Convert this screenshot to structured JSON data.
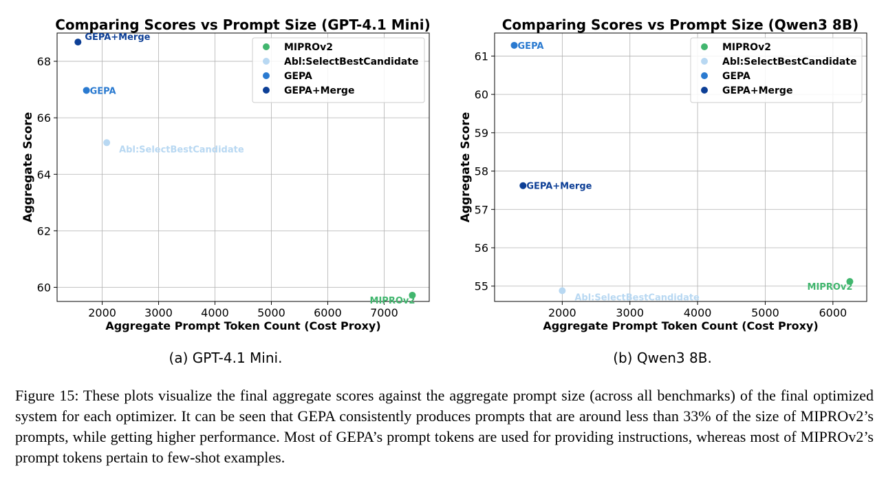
{
  "chart_data": [
    {
      "type": "scatter",
      "title": "Comparing Scores vs Prompt Size (GPT-4.1 Mini)",
      "xlabel": "Aggregate Prompt Token Count (Cost Proxy)",
      "ylabel": "Aggregate Score",
      "xlim": [
        1200,
        7800
      ],
      "ylim": [
        59.5,
        69.0
      ],
      "xticks": [
        2000,
        3000,
        4000,
        5000,
        6000,
        7000
      ],
      "yticks": [
        60,
        62,
        64,
        66,
        68
      ],
      "grid": true,
      "legend_position": "top-right",
      "legend": [
        "MIPROv2",
        "Abl:SelectBestCandidate",
        "GEPA",
        "GEPA+Merge"
      ],
      "series": [
        {
          "name": "MIPROv2",
          "label": "MIPROv2",
          "x": 7500,
          "y": 59.72,
          "color": "#41b66e",
          "label_side": "left-below"
        },
        {
          "name": "Abl:SelectBestCandidate",
          "label": "Abl:SelectBestCandidate",
          "x": 2080,
          "y": 65.12,
          "color": "#b8d8f2",
          "label_side": "right-below"
        },
        {
          "name": "GEPA",
          "label": "GEPA",
          "x": 1720,
          "y": 66.97,
          "color": "#2a7ad0",
          "label_side": "right"
        },
        {
          "name": "GEPA+Merge",
          "label": "GEPA+Merge",
          "x": 1570,
          "y": 68.68,
          "color": "#0d3f96",
          "label_side": "right-above"
        }
      ],
      "subcaption": "(a) GPT-4.1 Mini."
    },
    {
      "type": "scatter",
      "title": "Comparing Scores vs Prompt Size (Qwen3 8B)",
      "xlabel": "Aggregate Prompt Token Count (Cost Proxy)",
      "ylabel": "Aggregate Score",
      "xlim": [
        1000,
        6500
      ],
      "ylim": [
        54.6,
        61.6
      ],
      "xticks": [
        2000,
        3000,
        4000,
        5000,
        6000
      ],
      "yticks": [
        55,
        56,
        57,
        58,
        59,
        60,
        61
      ],
      "grid": true,
      "legend_position": "top-right",
      "legend": [
        "MIPROv2",
        "Abl:SelectBestCandidate",
        "GEPA",
        "GEPA+Merge"
      ],
      "series": [
        {
          "name": "MIPROv2",
          "label": "MIPROv2",
          "x": 6250,
          "y": 55.12,
          "color": "#41b66e",
          "label_side": "left-below"
        },
        {
          "name": "Abl:SelectBestCandidate",
          "label": "Abl:SelectBestCandidate",
          "x": 2000,
          "y": 54.88,
          "color": "#b8d8f2",
          "label_side": "right-below"
        },
        {
          "name": "GEPA",
          "label": "GEPA",
          "x": 1290,
          "y": 61.28,
          "color": "#2a7ad0",
          "label_side": "right"
        },
        {
          "name": "GEPA+Merge",
          "label": "GEPA+Merge",
          "x": 1420,
          "y": 57.62,
          "color": "#0d3f96",
          "label_side": "right"
        }
      ],
      "subcaption": "(b) Qwen3 8B."
    }
  ],
  "figure_caption": "Figure 15: These plots visualize the final aggregate scores against the aggregate prompt size (across all benchmarks) of the final optimized system for each optimizer. It can be seen that GEPA consistently produces prompts that are around less than 33% of the size of MIPROv2’s prompts, while getting higher performance. Most of GEPA’s prompt tokens are used for providing instructions, whereas most of MIPROv2’s prompt tokens pertain to few-shot examples."
}
